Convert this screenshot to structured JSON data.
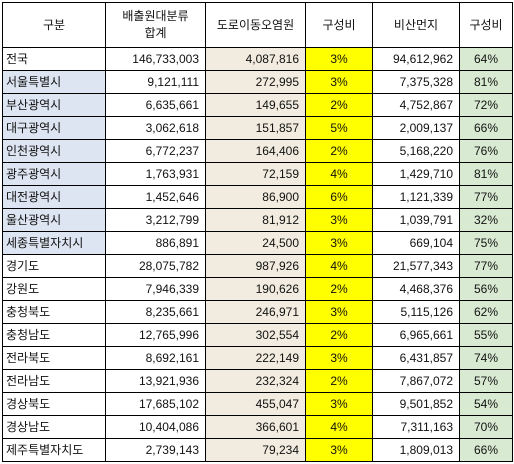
{
  "table": {
    "headers": {
      "region": "구분",
      "total_line1": "배출원대분류",
      "total_line2": "합계",
      "road": "도로이동오염원",
      "road_ratio": "구성비",
      "dust": "비산먼지",
      "dust_ratio": "구성비"
    },
    "colors": {
      "region_shade": "#dde5f2",
      "road_bg": "#f1ecdf",
      "road_ratio_bg": "#ffff00",
      "dust_ratio_bg": "#d9ead3"
    },
    "rows": [
      {
        "region": "전국",
        "total": "146,733,003",
        "road": "4,087,816",
        "road_ratio": "3%",
        "dust": "94,612,962",
        "dust_ratio": "64%",
        "shaded": false
      },
      {
        "region": "서울특별시",
        "total": "9,121,111",
        "road": "272,995",
        "road_ratio": "3%",
        "dust": "7,375,328",
        "dust_ratio": "81%",
        "shaded": true
      },
      {
        "region": "부산광역시",
        "total": "6,635,661",
        "road": "149,655",
        "road_ratio": "2%",
        "dust": "4,752,867",
        "dust_ratio": "72%",
        "shaded": true
      },
      {
        "region": "대구광역시",
        "total": "3,062,618",
        "road": "151,857",
        "road_ratio": "5%",
        "dust": "2,009,137",
        "dust_ratio": "66%",
        "shaded": true
      },
      {
        "region": "인천광역시",
        "total": "6,772,237",
        "road": "164,406",
        "road_ratio": "2%",
        "dust": "5,168,220",
        "dust_ratio": "76%",
        "shaded": true
      },
      {
        "region": "광주광역시",
        "total": "1,763,931",
        "road": "72,159",
        "road_ratio": "4%",
        "dust": "1,429,710",
        "dust_ratio": "81%",
        "shaded": true
      },
      {
        "region": "대전광역시",
        "total": "1,452,646",
        "road": "86,900",
        "road_ratio": "6%",
        "dust": "1,121,339",
        "dust_ratio": "77%",
        "shaded": true
      },
      {
        "region": "울산광역시",
        "total": "3,212,799",
        "road": "81,912",
        "road_ratio": "3%",
        "dust": "1,039,791",
        "dust_ratio": "32%",
        "shaded": true
      },
      {
        "region": "세종특별자치시",
        "total": "886,891",
        "road": "24,500",
        "road_ratio": "3%",
        "dust": "669,104",
        "dust_ratio": "75%",
        "shaded": true
      },
      {
        "region": "경기도",
        "total": "28,075,782",
        "road": "987,926",
        "road_ratio": "4%",
        "dust": "21,577,343",
        "dust_ratio": "77%",
        "shaded": false
      },
      {
        "region": "강원도",
        "total": "7,946,339",
        "road": "190,626",
        "road_ratio": "2%",
        "dust": "4,468,376",
        "dust_ratio": "56%",
        "shaded": false
      },
      {
        "region": "충청북도",
        "total": "8,235,661",
        "road": "246,971",
        "road_ratio": "3%",
        "dust": "5,115,126",
        "dust_ratio": "62%",
        "shaded": false
      },
      {
        "region": "충청남도",
        "total": "12,765,996",
        "road": "302,554",
        "road_ratio": "2%",
        "dust": "6,965,661",
        "dust_ratio": "55%",
        "shaded": false
      },
      {
        "region": "전라북도",
        "total": "8,692,161",
        "road": "222,149",
        "road_ratio": "3%",
        "dust": "6,431,857",
        "dust_ratio": "74%",
        "shaded": false
      },
      {
        "region": "전라남도",
        "total": "13,921,936",
        "road": "232,324",
        "road_ratio": "2%",
        "dust": "7,867,072",
        "dust_ratio": "57%",
        "shaded": false
      },
      {
        "region": "경상북도",
        "total": "17,685,102",
        "road": "455,047",
        "road_ratio": "3%",
        "dust": "9,501,852",
        "dust_ratio": "54%",
        "shaded": false
      },
      {
        "region": "경상남도",
        "total": "10,404,086",
        "road": "366,601",
        "road_ratio": "4%",
        "dust": "7,311,163",
        "dust_ratio": "70%",
        "shaded": false
      },
      {
        "region": "제주특별자치도",
        "total": "2,739,143",
        "road": "79,234",
        "road_ratio": "3%",
        "dust": "1,809,013",
        "dust_ratio": "66%",
        "shaded": false
      }
    ]
  }
}
